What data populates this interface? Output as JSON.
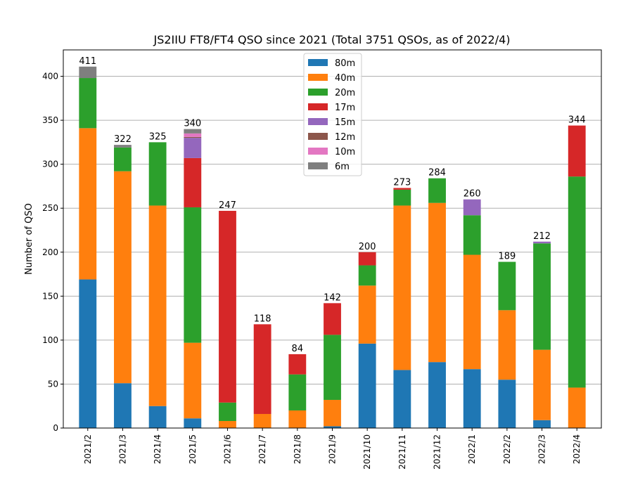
{
  "chart_data": {
    "type": "bar",
    "stacked": true,
    "title": "JS2IIU FT8/FT4 QSO since 2021 (Total 3751 QSOs, as of 2022/4)",
    "xlabel": "",
    "ylabel": "Number of QSO",
    "ylim": [
      0,
      430
    ],
    "yticks": [
      0,
      50,
      100,
      150,
      200,
      250,
      300,
      350,
      400
    ],
    "grid": "y",
    "legend_position": "top-center",
    "categories": [
      "2021/2",
      "2021/3",
      "2021/4",
      "2021/5",
      "2021/6",
      "2021/7",
      "2021/8",
      "2021/9",
      "2021/10",
      "2021/11",
      "2021/12",
      "2022/1",
      "2022/2",
      "2022/3",
      "2022/4"
    ],
    "totals": [
      411,
      322,
      325,
      340,
      247,
      118,
      84,
      142,
      200,
      273,
      284,
      260,
      189,
      212,
      344
    ],
    "series": [
      {
        "name": "80m",
        "color": "#1f77b4",
        "values": [
          169,
          51,
          25,
          11,
          0,
          0,
          0,
          2,
          96,
          66,
          75,
          67,
          55,
          9,
          0
        ]
      },
      {
        "name": "40m",
        "color": "#ff7f0e",
        "values": [
          172,
          241,
          228,
          86,
          8,
          16,
          20,
          30,
          66,
          187,
          181,
          130,
          79,
          80,
          46
        ]
      },
      {
        "name": "20m",
        "color": "#2ca02c",
        "values": [
          57,
          27,
          72,
          154,
          21,
          0,
          41,
          74,
          23,
          18,
          28,
          45,
          55,
          121,
          240
        ]
      },
      {
        "name": "17m",
        "color": "#d62728",
        "values": [
          0,
          0,
          0,
          56,
          218,
          102,
          23,
          36,
          15,
          2,
          0,
          0,
          0,
          0,
          58
        ]
      },
      {
        "name": "15m",
        "color": "#9467bd",
        "values": [
          0,
          0,
          0,
          23,
          0,
          0,
          0,
          0,
          0,
          0,
          0,
          18,
          0,
          2,
          0
        ]
      },
      {
        "name": "12m",
        "color": "#8c564b",
        "values": [
          0,
          0,
          0,
          1,
          0,
          0,
          0,
          0,
          0,
          0,
          0,
          0,
          0,
          0,
          0
        ]
      },
      {
        "name": "10m",
        "color": "#e377c2",
        "values": [
          0,
          0,
          0,
          4,
          0,
          0,
          0,
          0,
          0,
          0,
          0,
          0,
          0,
          0,
          0
        ]
      },
      {
        "name": "6m",
        "color": "#7f7f7f",
        "values": [
          13,
          3,
          0,
          5,
          0,
          0,
          0,
          0,
          0,
          0,
          0,
          0,
          0,
          0,
          0
        ]
      }
    ]
  }
}
